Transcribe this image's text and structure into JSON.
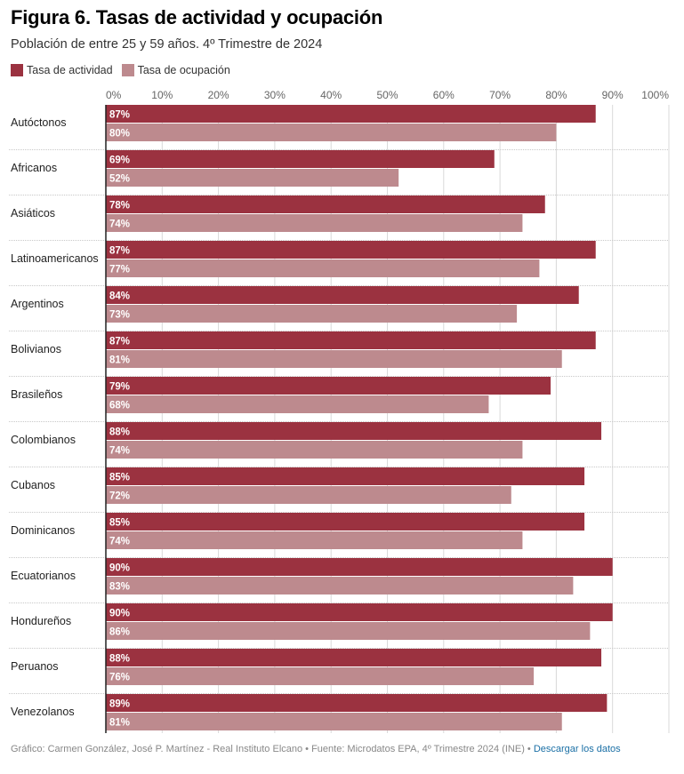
{
  "header": {
    "title": "Figura 6. Tasas de actividad y ocupación",
    "subtitle": "Población de entre 25 y 59 años. 4º Trimestre de 2024"
  },
  "legend": [
    {
      "label": "Tasa de actividad",
      "color": "#9b3240"
    },
    {
      "label": "Tasa de ocupación",
      "color": "#bd8a8e"
    }
  ],
  "footer": {
    "credit": "Gráfico: Carmen González, José P. Martínez - Real Instituto Elcano • Fuente: Microdatos EPA, 4º Trimestre 2024 (INE) • ",
    "link_label": "Descargar los datos",
    "link_color": "#1a6fa5"
  },
  "chart_data": {
    "type": "bar",
    "orientation": "horizontal",
    "title": "Figura 6. Tasas de actividad y ocupación",
    "subtitle": "Población de entre 25 y 59 años. 4º Trimestre de 2024",
    "xlabel": "",
    "ylabel": "",
    "xlim": [
      0,
      100
    ],
    "x_ticks": [
      "0%",
      "10%",
      "20%",
      "30%",
      "40%",
      "50%",
      "60%",
      "70%",
      "80%",
      "90%",
      "100%"
    ],
    "grid": true,
    "legend_position": "top-left",
    "categories": [
      "Autóctonos",
      "Africanos",
      "Asiáticos",
      "Latinoamericanos",
      "Argentinos",
      "Bolivianos",
      "Brasileños",
      "Colombianos",
      "Cubanos",
      "Dominicanos",
      "Ecuatorianos",
      "Hondureños",
      "Peruanos",
      "Venezolanos"
    ],
    "series": [
      {
        "name": "Tasa de actividad",
        "color": "#9b3240",
        "values": [
          87,
          69,
          78,
          87,
          84,
          87,
          79,
          88,
          85,
          85,
          90,
          90,
          88,
          89
        ]
      },
      {
        "name": "Tasa de ocupación",
        "color": "#bd8a8e",
        "values": [
          80,
          52,
          74,
          77,
          73,
          81,
          68,
          74,
          72,
          74,
          83,
          86,
          76,
          81
        ]
      }
    ],
    "value_labels_suffix": "%"
  }
}
